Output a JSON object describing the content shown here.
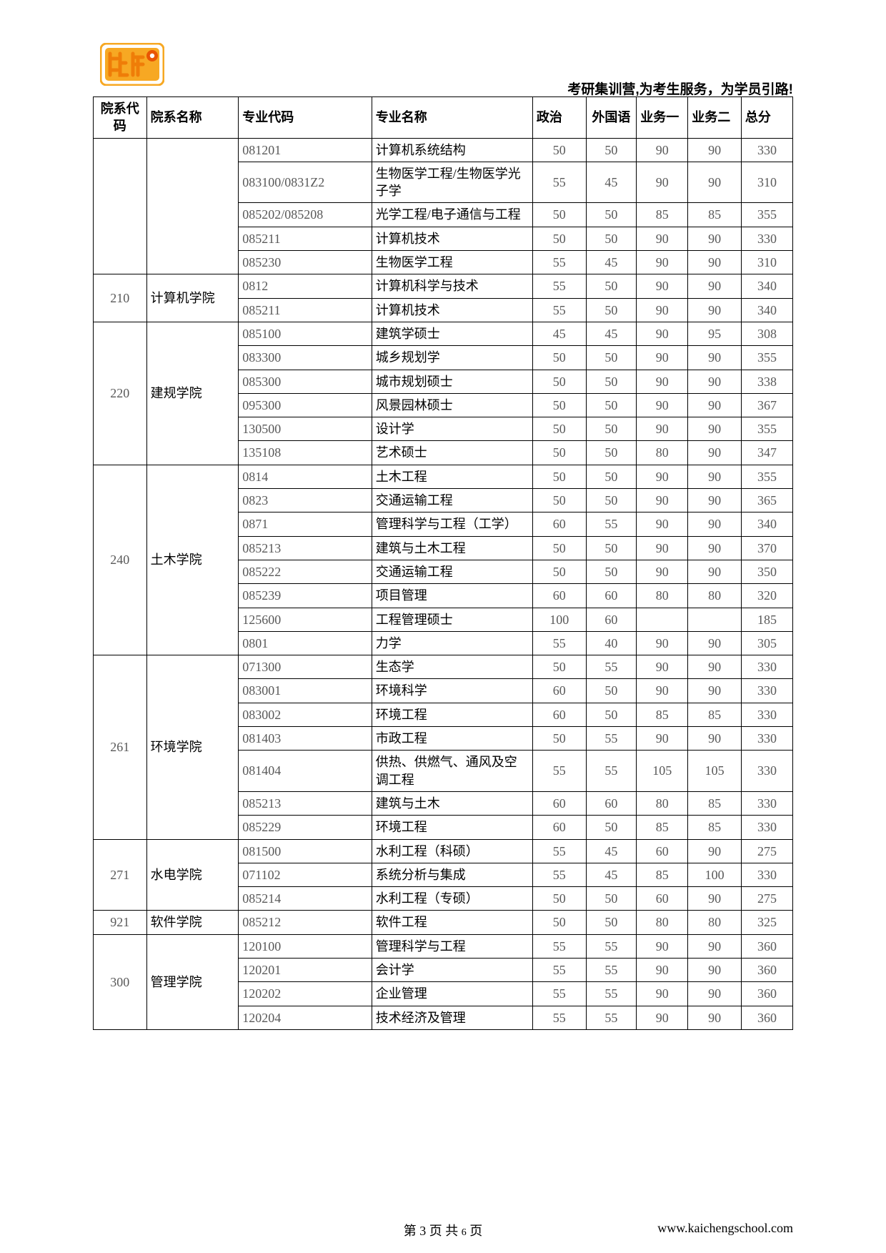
{
  "header": {
    "slogan": "考研集训营,为考生服务，为学员引路!"
  },
  "logo": {
    "name": "kaicheng-logo",
    "box_color": "#f7a823",
    "accent_color": "#e95504",
    "text_color": "#ffffff"
  },
  "table": {
    "columns": [
      {
        "key": "dept_code",
        "label": "院系代码",
        "class": "col-dept-code",
        "th_align": "center"
      },
      {
        "key": "dept_name",
        "label": "院系名称",
        "class": "col-dept-name",
        "th_align": "left"
      },
      {
        "key": "major_code",
        "label": "专业代码",
        "class": "col-major-code",
        "th_align": "left"
      },
      {
        "key": "major_name",
        "label": "专业名称",
        "class": "col-major-name",
        "th_align": "left"
      },
      {
        "key": "pol",
        "label": "政治",
        "class": "col-pol",
        "th_align": "left"
      },
      {
        "key": "lang",
        "label": "外国语",
        "class": "col-lang",
        "th_align": "center"
      },
      {
        "key": "b1",
        "label": "业务一",
        "class": "col-b1",
        "th_align": "left"
      },
      {
        "key": "b2",
        "label": "业务二",
        "class": "col-b2",
        "th_align": "left"
      },
      {
        "key": "total",
        "label": "总分",
        "class": "col-total",
        "th_align": "left"
      }
    ],
    "groups": [
      {
        "dept_code": "",
        "dept_name": "",
        "rows": [
          {
            "major_code": "081201",
            "major_name": "计算机系统结构",
            "pol": "50",
            "lang": "50",
            "b1": "90",
            "b2": "90",
            "total": "330"
          },
          {
            "major_code": "083100/0831Z2",
            "major_name": "生物医学工程/生物医学光子学",
            "pol": "55",
            "lang": "45",
            "b1": "90",
            "b2": "90",
            "total": "310"
          },
          {
            "major_code": "085202/085208",
            "major_name": "光学工程/电子通信与工程",
            "pol": "50",
            "lang": "50",
            "b1": "85",
            "b2": "85",
            "total": "355"
          },
          {
            "major_code": "085211",
            "major_name": "计算机技术",
            "pol": "50",
            "lang": "50",
            "b1": "90",
            "b2": "90",
            "total": "330"
          },
          {
            "major_code": "085230",
            "major_name": "生物医学工程",
            "pol": "55",
            "lang": "45",
            "b1": "90",
            "b2": "90",
            "total": "310"
          }
        ]
      },
      {
        "dept_code": "210",
        "dept_name": "计算机学院",
        "rows": [
          {
            "major_code": "0812",
            "major_name": "计算机科学与技术",
            "pol": "55",
            "lang": "50",
            "b1": "90",
            "b2": "90",
            "total": "340"
          },
          {
            "major_code": "085211",
            "major_name": "计算机技术",
            "pol": "55",
            "lang": "50",
            "b1": "90",
            "b2": "90",
            "total": "340"
          }
        ]
      },
      {
        "dept_code": "220",
        "dept_name": "建规学院",
        "rows": [
          {
            "major_code": "085100",
            "major_name": "建筑学硕士",
            "pol": "45",
            "lang": "45",
            "b1": "90",
            "b2": "95",
            "total": "308"
          },
          {
            "major_code": "083300",
            "major_name": "城乡规划学",
            "pol": "50",
            "lang": "50",
            "b1": "90",
            "b2": "90",
            "total": "355"
          },
          {
            "major_code": "085300",
            "major_name": "城市规划硕士",
            "pol": "50",
            "lang": "50",
            "b1": "90",
            "b2": "90",
            "total": "338"
          },
          {
            "major_code": "095300",
            "major_name": "风景园林硕士",
            "pol": "50",
            "lang": "50",
            "b1": "90",
            "b2": "90",
            "total": "367"
          },
          {
            "major_code": "130500",
            "major_name": "设计学",
            "pol": "50",
            "lang": "50",
            "b1": "90",
            "b2": "90",
            "total": "355"
          },
          {
            "major_code": "135108",
            "major_name": "艺术硕士",
            "pol": "50",
            "lang": "50",
            "b1": "80",
            "b2": "90",
            "total": "347"
          }
        ]
      },
      {
        "dept_code": "240",
        "dept_name": "土木学院",
        "rows": [
          {
            "major_code": "0814",
            "major_name": "土木工程",
            "pol": "50",
            "lang": "50",
            "b1": "90",
            "b2": "90",
            "total": "355"
          },
          {
            "major_code": "0823",
            "major_name": "交通运输工程",
            "pol": "50",
            "lang": "50",
            "b1": "90",
            "b2": "90",
            "total": "365"
          },
          {
            "major_code": "0871",
            "major_name": "管理科学与工程（工学）",
            "pol": "60",
            "lang": "55",
            "b1": "90",
            "b2": "90",
            "total": "340"
          },
          {
            "major_code": "085213",
            "major_name": "建筑与土木工程",
            "pol": "50",
            "lang": "50",
            "b1": "90",
            "b2": "90",
            "total": "370"
          },
          {
            "major_code": "085222",
            "major_name": "交通运输工程",
            "pol": "50",
            "lang": "50",
            "b1": "90",
            "b2": "90",
            "total": "350"
          },
          {
            "major_code": "085239",
            "major_name": "项目管理",
            "pol": "60",
            "lang": "60",
            "b1": "80",
            "b2": "80",
            "total": "320"
          },
          {
            "major_code": "125600",
            "major_name": "工程管理硕士",
            "pol": "100",
            "lang": "60",
            "b1": "",
            "b2": "",
            "total": "185"
          },
          {
            "major_code": "0801",
            "major_name": "力学",
            "pol": "55",
            "lang": "40",
            "b1": "90",
            "b2": "90",
            "total": "305"
          }
        ]
      },
      {
        "dept_code": "261",
        "dept_name": "环境学院",
        "rows": [
          {
            "major_code": "071300",
            "major_name": "生态学",
            "pol": "50",
            "lang": "55",
            "b1": "90",
            "b2": "90",
            "total": "330"
          },
          {
            "major_code": "083001",
            "major_name": "环境科学",
            "pol": "60",
            "lang": "50",
            "b1": "90",
            "b2": "90",
            "total": "330"
          },
          {
            "major_code": "083002",
            "major_name": "环境工程",
            "pol": "60",
            "lang": "50",
            "b1": "85",
            "b2": "85",
            "total": "330"
          },
          {
            "major_code": "081403",
            "major_name": "市政工程",
            "pol": "50",
            "lang": "55",
            "b1": "90",
            "b2": "90",
            "total": "330"
          },
          {
            "major_code": "081404",
            "major_name": "供热、供燃气、通风及空调工程",
            "pol": "55",
            "lang": "55",
            "b1": "105",
            "b2": "105",
            "total": "330"
          },
          {
            "major_code": "085213",
            "major_name": "建筑与土木",
            "pol": "60",
            "lang": "60",
            "b1": "80",
            "b2": "85",
            "total": "330"
          },
          {
            "major_code": "085229",
            "major_name": "环境工程",
            "pol": "60",
            "lang": "50",
            "b1": "85",
            "b2": "85",
            "total": "330"
          }
        ]
      },
      {
        "dept_code": "271",
        "dept_name": "水电学院",
        "rows": [
          {
            "major_code": "081500",
            "major_name": "水利工程（科硕）",
            "pol": "55",
            "lang": "45",
            "b1": "60",
            "b2": "90",
            "total": "275"
          },
          {
            "major_code": "071102",
            "major_name": "系统分析与集成",
            "pol": "55",
            "lang": "45",
            "b1": "85",
            "b2": "100",
            "total": "330"
          },
          {
            "major_code": "085214",
            "major_name": "水利工程（专硕）",
            "pol": "50",
            "lang": "50",
            "b1": "60",
            "b2": "90",
            "total": "275"
          }
        ]
      },
      {
        "dept_code": "921",
        "dept_name": "软件学院",
        "rows": [
          {
            "major_code": "085212",
            "major_name": "软件工程",
            "pol": "50",
            "lang": "50",
            "b1": "80",
            "b2": "80",
            "total": "325"
          }
        ]
      },
      {
        "dept_code": "300",
        "dept_name": "管理学院",
        "rows": [
          {
            "major_code": "120100",
            "major_name": "管理科学与工程",
            "pol": "55",
            "lang": "55",
            "b1": "90",
            "b2": "90",
            "total": "360"
          },
          {
            "major_code": "120201",
            "major_name": "会计学",
            "pol": "55",
            "lang": "55",
            "b1": "90",
            "b2": "90",
            "total": "360"
          },
          {
            "major_code": "120202",
            "major_name": "企业管理",
            "pol": "55",
            "lang": "55",
            "b1": "90",
            "b2": "90",
            "total": "360"
          },
          {
            "major_code": "120204",
            "major_name": "技术经济及管理",
            "pol": "55",
            "lang": "55",
            "b1": "90",
            "b2": "90",
            "total": "360"
          }
        ]
      }
    ]
  },
  "footer": {
    "page_label_prefix": "第 ",
    "page_current": "3",
    "page_label_mid": " 页 共 ",
    "page_total": "6",
    "page_label_suffix": " 页",
    "site": "www.kaichengschool.com"
  }
}
